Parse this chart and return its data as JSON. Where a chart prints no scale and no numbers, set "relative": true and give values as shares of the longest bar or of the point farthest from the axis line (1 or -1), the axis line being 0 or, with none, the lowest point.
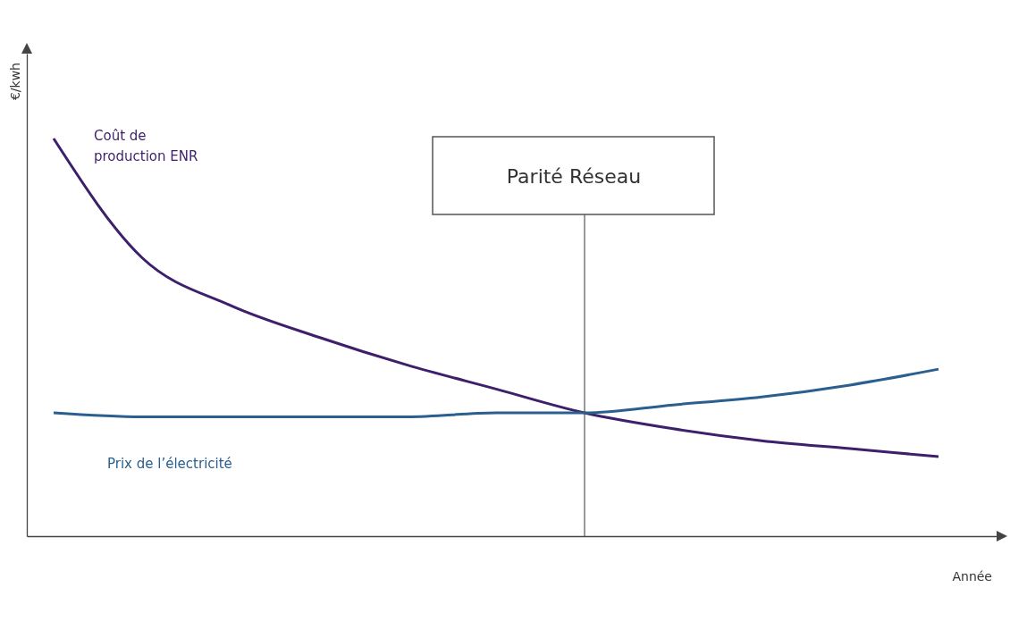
{
  "chart_data": {
    "type": "line",
    "relative": true,
    "xlabel": "Année",
    "ylabel": "€/kwh",
    "categories": [
      null,
      null,
      null,
      null,
      null,
      null,
      null,
      null,
      null,
      null,
      null
    ],
    "series": [
      {
        "name": "Coût de production ENR",
        "color": "#3d1f6b",
        "values": [
          1.0,
          0.7,
          0.58,
          0.5,
          0.43,
          0.37,
          0.31,
          0.27,
          0.24,
          0.22,
          0.2
        ]
      },
      {
        "name": "Prix de l’électricité",
        "color": "#2a5f8f",
        "values": [
          0.31,
          0.3,
          0.3,
          0.3,
          0.3,
          0.31,
          0.31,
          0.33,
          0.35,
          0.38,
          0.42
        ]
      }
    ],
    "annotations": [
      "Parité Réseau"
    ],
    "grid": false,
    "legend": false
  }
}
